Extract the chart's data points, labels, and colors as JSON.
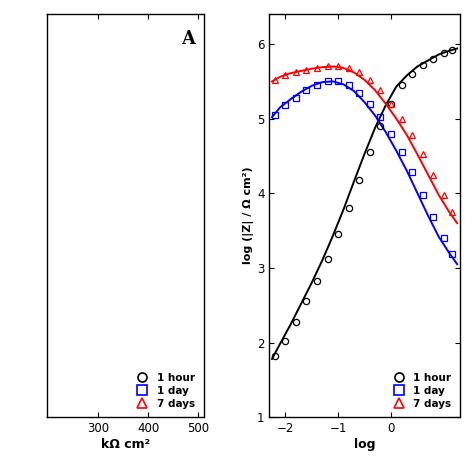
{
  "left_panel": {
    "label": "A",
    "xlabel": "kΩ cm²",
    "xlim": [
      200,
      510
    ],
    "xticks": [
      300,
      400,
      500
    ],
    "ylim": [
      0,
      520
    ]
  },
  "right_panel": {
    "xlabel": "log",
    "ylabel": "log (|Z| / Ω cm²)",
    "xlim": [
      -2.3,
      1.3
    ],
    "xticks": [
      -2,
      -1,
      0
    ],
    "ylim": [
      1,
      6.4
    ],
    "yticks": [
      1,
      2,
      3,
      4,
      5,
      6
    ],
    "series": {
      "1hour": {
        "sx": [
          -2.2,
          -2.0,
          -1.8,
          -1.6,
          -1.4,
          -1.2,
          -1.0,
          -0.8,
          -0.6,
          -0.4,
          -0.2,
          0.0,
          0.2,
          0.4,
          0.6,
          0.8,
          1.0,
          1.15
        ],
        "sy": [
          1.82,
          2.02,
          2.28,
          2.55,
          2.82,
          3.12,
          3.45,
          3.8,
          4.18,
          4.55,
          4.9,
          5.2,
          5.45,
          5.6,
          5.72,
          5.8,
          5.88,
          5.92
        ],
        "lx": [
          -2.25,
          -2.1,
          -1.9,
          -1.7,
          -1.5,
          -1.3,
          -1.1,
          -0.9,
          -0.7,
          -0.5,
          -0.3,
          -0.1,
          0.1,
          0.3,
          0.5,
          0.7,
          0.9,
          1.1,
          1.25
        ],
        "ly": [
          1.78,
          1.98,
          2.24,
          2.52,
          2.8,
          3.1,
          3.43,
          3.78,
          4.16,
          4.53,
          4.88,
          5.18,
          5.43,
          5.58,
          5.7,
          5.78,
          5.86,
          5.91,
          5.94
        ],
        "color": "black",
        "marker": "o"
      },
      "1day": {
        "sx": [
          -2.2,
          -2.0,
          -1.8,
          -1.6,
          -1.4,
          -1.2,
          -1.0,
          -0.8,
          -0.6,
          -0.4,
          -0.2,
          0.0,
          0.2,
          0.4,
          0.6,
          0.8,
          1.0,
          1.15
        ],
        "sy": [
          5.05,
          5.18,
          5.28,
          5.38,
          5.45,
          5.5,
          5.5,
          5.45,
          5.35,
          5.2,
          5.02,
          4.8,
          4.55,
          4.28,
          3.98,
          3.68,
          3.4,
          3.18
        ],
        "lx": [
          -2.25,
          -2.1,
          -1.9,
          -1.7,
          -1.5,
          -1.3,
          -1.1,
          -0.9,
          -0.7,
          -0.5,
          -0.3,
          -0.1,
          0.1,
          0.3,
          0.5,
          0.7,
          0.9,
          1.1,
          1.25
        ],
        "ly": [
          5.02,
          5.15,
          5.26,
          5.36,
          5.44,
          5.49,
          5.5,
          5.46,
          5.37,
          5.22,
          5.04,
          4.82,
          4.57,
          4.3,
          4.0,
          3.7,
          3.42,
          3.2,
          3.05
        ],
        "color": "blue",
        "marker": "s"
      },
      "7days": {
        "sx": [
          -2.2,
          -2.0,
          -1.8,
          -1.6,
          -1.4,
          -1.2,
          -1.0,
          -0.8,
          -0.6,
          -0.4,
          -0.2,
          0.0,
          0.2,
          0.4,
          0.6,
          0.8,
          1.0,
          1.15
        ],
        "sy": [
          5.52,
          5.58,
          5.62,
          5.65,
          5.68,
          5.7,
          5.7,
          5.68,
          5.62,
          5.52,
          5.38,
          5.2,
          5.0,
          4.78,
          4.52,
          4.25,
          3.98,
          3.75
        ],
        "lx": [
          -2.25,
          -2.1,
          -1.9,
          -1.7,
          -1.5,
          -1.3,
          -1.1,
          -0.9,
          -0.7,
          -0.5,
          -0.3,
          -0.1,
          0.1,
          0.3,
          0.5,
          0.7,
          0.9,
          1.1,
          1.25
        ],
        "ly": [
          5.5,
          5.56,
          5.61,
          5.64,
          5.67,
          5.69,
          5.7,
          5.68,
          5.62,
          5.52,
          5.38,
          5.2,
          5.0,
          4.78,
          4.52,
          4.25,
          3.98,
          3.75,
          3.6
        ],
        "color": "red",
        "marker": "^"
      }
    }
  },
  "legend_entries": [
    {
      "label": "1 hour",
      "marker": "o",
      "color": "black"
    },
    {
      "label": "1 day",
      "marker": "s",
      "color": "blue"
    },
    {
      "label": "7 days",
      "marker": "^",
      "color": "red"
    }
  ],
  "background_color": "#ffffff"
}
